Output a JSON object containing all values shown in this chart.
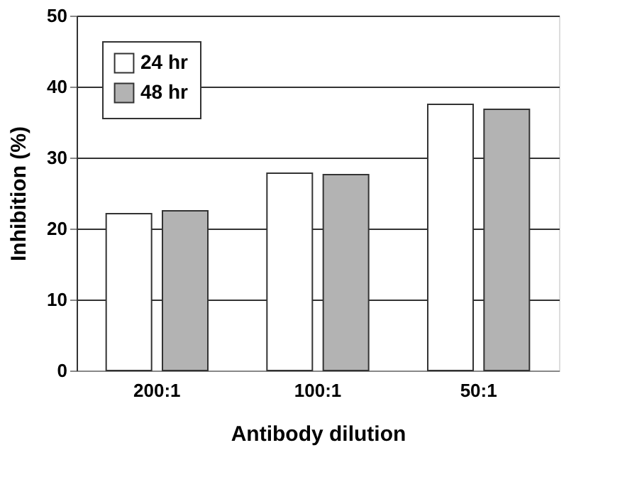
{
  "chart_data": {
    "type": "bar",
    "xlabel": "Antibody dilution",
    "ylabel": "Inhibition (%)",
    "categories": [
      "200:1",
      "100:1",
      "50:1"
    ],
    "series": [
      {
        "name": "24 hr",
        "color": "#ffffff",
        "values": [
          22.1,
          27.8,
          37.5
        ]
      },
      {
        "name": "48 hr",
        "color": "#b3b3b3",
        "values": [
          22.5,
          27.6,
          36.8
        ]
      }
    ],
    "ylim": [
      0,
      50
    ],
    "yticks": [
      0,
      10,
      20,
      30,
      40,
      50
    ],
    "grid": "y",
    "legend": "top left"
  }
}
